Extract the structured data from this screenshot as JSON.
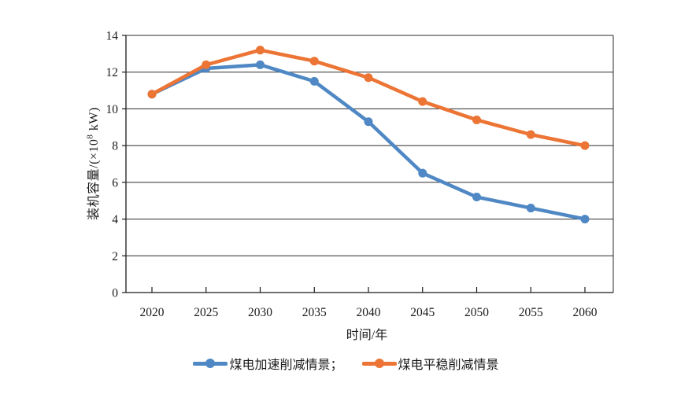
{
  "page": {
    "background": "#FFFFFF"
  },
  "chart_data": {
    "type": "line",
    "title": "",
    "x_categories": [
      "2020",
      "2025",
      "2030",
      "2035",
      "2040",
      "2045",
      "2050",
      "2055",
      "2060"
    ],
    "xlabel": "时间/年",
    "ylabel": "装机容量/(×10⁸ kW)",
    "ylabel_parts": {
      "prefix": "装机容量/(×10",
      "superscript": "8",
      "suffix": " kW)"
    },
    "ylim": [
      0,
      14
    ],
    "yticks": [
      0,
      2,
      4,
      6,
      8,
      10,
      12,
      14
    ],
    "grid": "horizontal",
    "legend_position": "bottom-center",
    "axis_color": "#1A1A1A",
    "gridline_color": "#2B2B2B",
    "tick_label_color": "#1A1A1A",
    "series": [
      {
        "name": "煤电加速削减情景",
        "legend_label": "煤电加速削减情景；",
        "color": "#4F88C4",
        "marker": "circle",
        "values": [
          10.8,
          12.2,
          12.4,
          11.5,
          9.3,
          6.5,
          5.2,
          4.6,
          4.0
        ]
      },
      {
        "name": "煤电平稳削减情景",
        "legend_label": "煤电平稳削减情景",
        "color": "#EC7434",
        "marker": "circle",
        "values": [
          10.8,
          12.4,
          13.2,
          12.6,
          11.7,
          10.4,
          9.4,
          8.6,
          8.0
        ]
      }
    ]
  }
}
